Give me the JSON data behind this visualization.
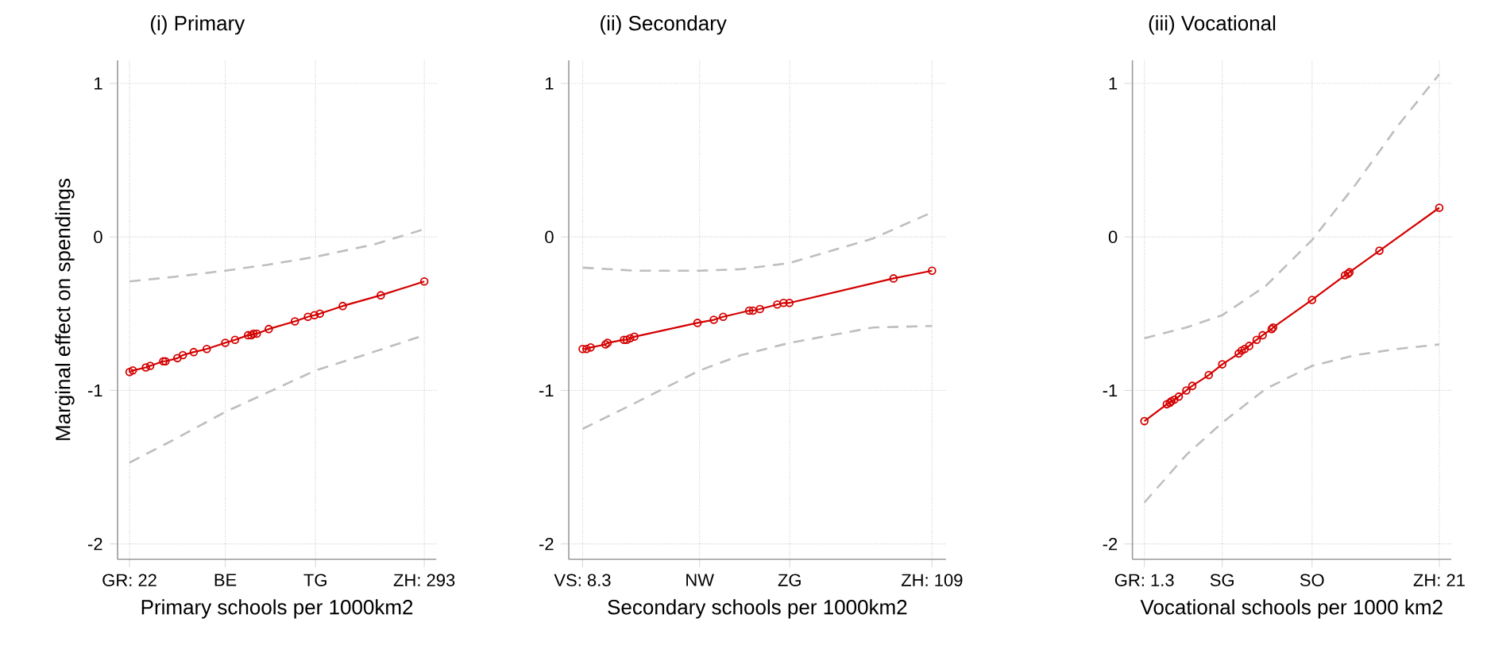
{
  "chart_data": [
    {
      "type": "line",
      "title": "(i) Primary",
      "xlabel": "Primary schools per 1000km2",
      "ylabel": "Marginal effect on spendings",
      "xlim": [
        11,
        304
      ],
      "xticks": [
        {
          "value": 22,
          "label": "GR: 22"
        },
        {
          "value": 110,
          "label": "BE"
        },
        {
          "value": 193,
          "label": "TG"
        },
        {
          "value": 293,
          "label": "ZH: 293"
        }
      ],
      "ylim": [
        -2.1,
        1.15
      ],
      "yticks": [
        -2,
        -1,
        0,
        1
      ],
      "grid": true,
      "series": [
        {
          "color": "#d40000",
          "marker": "circle",
          "line_style": "solid",
          "x": [
            22,
            25,
            37,
            41,
            53,
            55,
            66,
            71,
            81,
            93,
            110,
            119,
            131,
            134,
            136,
            139,
            150,
            174,
            186,
            192,
            197,
            218,
            253,
            293
          ],
          "values": [
            -0.88,
            -0.87,
            -0.85,
            -0.84,
            -0.81,
            -0.81,
            -0.79,
            -0.77,
            -0.75,
            -0.73,
            -0.69,
            -0.67,
            -0.64,
            -0.64,
            -0.63,
            -0.63,
            -0.6,
            -0.55,
            -0.52,
            -0.51,
            -0.5,
            -0.45,
            -0.38,
            -0.29
          ]
        },
        {
          "color": "#bebebe",
          "marker": "none",
          "line_style": "dashed",
          "x": [
            22,
            63,
            110,
            150,
            193,
            246,
            293
          ],
          "values": [
            -0.29,
            -0.26,
            -0.22,
            -0.18,
            -0.13,
            -0.05,
            0.05
          ]
        },
        {
          "color": "#bebebe",
          "marker": "none",
          "line_style": "dashed",
          "x": [
            22,
            63,
            110,
            150,
            193,
            246,
            293
          ],
          "values": [
            -1.47,
            -1.32,
            -1.14,
            -1.01,
            -0.87,
            -0.75,
            -0.64
          ]
        }
      ]
    },
    {
      "type": "line",
      "title": "(ii) Secondary",
      "xlabel": "Secondary schools per 1000km2",
      "xlim": [
        4.3,
        113
      ],
      "xticks": [
        {
          "value": 8.3,
          "label": "VS: 8.3"
        },
        {
          "value": 42,
          "label": "NW"
        },
        {
          "value": 68,
          "label": "ZG"
        },
        {
          "value": 109,
          "label": "ZH: 109"
        }
      ],
      "ylim": [
        -2.1,
        1.15
      ],
      "yticks": [
        -2,
        -1,
        0,
        1
      ],
      "grid": true,
      "series": [
        {
          "color": "#d40000",
          "marker": "circle",
          "line_style": "solid",
          "x": [
            8.3,
            9.4,
            10.6,
            14.9,
            15.5,
            20.2,
            21.0,
            22.0,
            23.2,
            41.4,
            46.1,
            48.8,
            56.3,
            57.4,
            59.4,
            64.4,
            66.2,
            67.9,
            97.9,
            109
          ],
          "values": [
            -0.73,
            -0.73,
            -0.72,
            -0.7,
            -0.69,
            -0.67,
            -0.67,
            -0.66,
            -0.65,
            -0.56,
            -0.54,
            -0.52,
            -0.48,
            -0.48,
            -0.47,
            -0.44,
            -0.43,
            -0.43,
            -0.27,
            -0.22
          ]
        },
        {
          "color": "#bebebe",
          "marker": "none",
          "line_style": "dashed",
          "x": [
            8.3,
            23.6,
            42,
            54,
            68,
            92,
            109
          ],
          "values": [
            -0.2,
            -0.22,
            -0.22,
            -0.21,
            -0.17,
            -0.01,
            0.16
          ]
        },
        {
          "color": "#bebebe",
          "marker": "none",
          "line_style": "dashed",
          "x": [
            8.3,
            23.6,
            42,
            54,
            68,
            92,
            109
          ],
          "values": [
            -1.25,
            -1.08,
            -0.87,
            -0.77,
            -0.69,
            -0.59,
            -0.58
          ]
        }
      ]
    },
    {
      "type": "line",
      "title": "(iii) Vocational",
      "xlabel": "Vocational schools per 1000 km2",
      "xlim": [
        0.5,
        21.8
      ],
      "xticks": [
        {
          "value": 1.3,
          "label": "GR: 1.3"
        },
        {
          "value": 6.5,
          "label": "SG"
        },
        {
          "value": 12.5,
          "label": "SO"
        },
        {
          "value": 21,
          "label": "ZH: 21"
        }
      ],
      "ylim": [
        -2.1,
        1.15
      ],
      "yticks": [
        -2,
        -1,
        0,
        1
      ],
      "grid": true,
      "series": [
        {
          "color": "#d40000",
          "marker": "circle",
          "line_style": "solid",
          "x": [
            1.3,
            2.8,
            3.0,
            3.1,
            3.3,
            3.6,
            4.1,
            4.5,
            5.6,
            6.5,
            7.6,
            7.8,
            8.0,
            8.3,
            8.8,
            9.2,
            9.8,
            9.9,
            12.5,
            14.7,
            14.9,
            15.0,
            17.0,
            21
          ],
          "values": [
            -1.2,
            -1.09,
            -1.08,
            -1.07,
            -1.06,
            -1.04,
            -1.0,
            -0.97,
            -0.9,
            -0.83,
            -0.76,
            -0.74,
            -0.73,
            -0.71,
            -0.67,
            -0.64,
            -0.6,
            -0.59,
            -0.41,
            -0.25,
            -0.24,
            -0.23,
            -0.09,
            0.19
          ]
        },
        {
          "color": "#bebebe",
          "marker": "none",
          "line_style": "dashed",
          "x": [
            1.3,
            4.1,
            6.5,
            9.4,
            12.5,
            15.4,
            18.2,
            21
          ],
          "values": [
            -0.66,
            -0.59,
            -0.51,
            -0.32,
            -0.02,
            0.34,
            0.72,
            1.06
          ]
        },
        {
          "color": "#bebebe",
          "marker": "none",
          "line_style": "dashed",
          "x": [
            1.3,
            4.1,
            6.5,
            9.4,
            12.5,
            15.4,
            18.2,
            21
          ],
          "values": [
            -1.73,
            -1.42,
            -1.21,
            -0.99,
            -0.84,
            -0.77,
            -0.73,
            -0.7
          ]
        }
      ]
    }
  ]
}
